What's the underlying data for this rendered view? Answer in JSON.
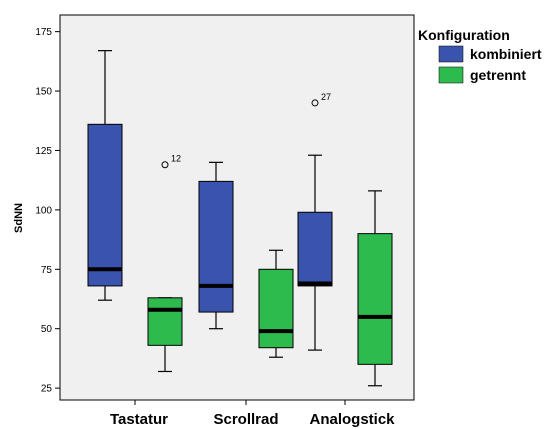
{
  "chart_data": {
    "type": "boxplot",
    "ylabel": "SdNN",
    "ylim": [
      20,
      182
    ],
    "yticks": [
      25,
      50,
      75,
      100,
      125,
      150,
      175
    ],
    "categories": [
      "Tastatur",
      "Scrollrad",
      "Analogstick"
    ],
    "legend": {
      "title": "Konfiguration",
      "position": "right"
    },
    "series": [
      {
        "name": "kombiniert",
        "color": "#3a54ad",
        "boxes": [
          {
            "min": 62,
            "q1": 68,
            "median": 75,
            "q3": 136,
            "max": 167,
            "outliers": []
          },
          {
            "min": 50,
            "q1": 57,
            "median": 68,
            "q3": 112,
            "max": 120,
            "outliers": []
          },
          {
            "min": 41,
            "q1": 68,
            "median": 69,
            "q3": 99,
            "max": 123,
            "outliers": [
              {
                "value": 145,
                "label": "27"
              }
            ]
          }
        ]
      },
      {
        "name": "getrennt",
        "color": "#2ebb4e",
        "boxes": [
          {
            "min": 32,
            "q1": 43,
            "median": 58,
            "q3": 63,
            "max": 63,
            "outliers": [
              {
                "value": 119,
                "label": "12"
              }
            ]
          },
          {
            "min": 38,
            "q1": 42,
            "median": 49,
            "q3": 75,
            "max": 83,
            "outliers": []
          },
          {
            "min": 26,
            "q1": 35,
            "median": 55,
            "q3": 90,
            "max": 108,
            "outliers": []
          }
        ]
      }
    ]
  }
}
